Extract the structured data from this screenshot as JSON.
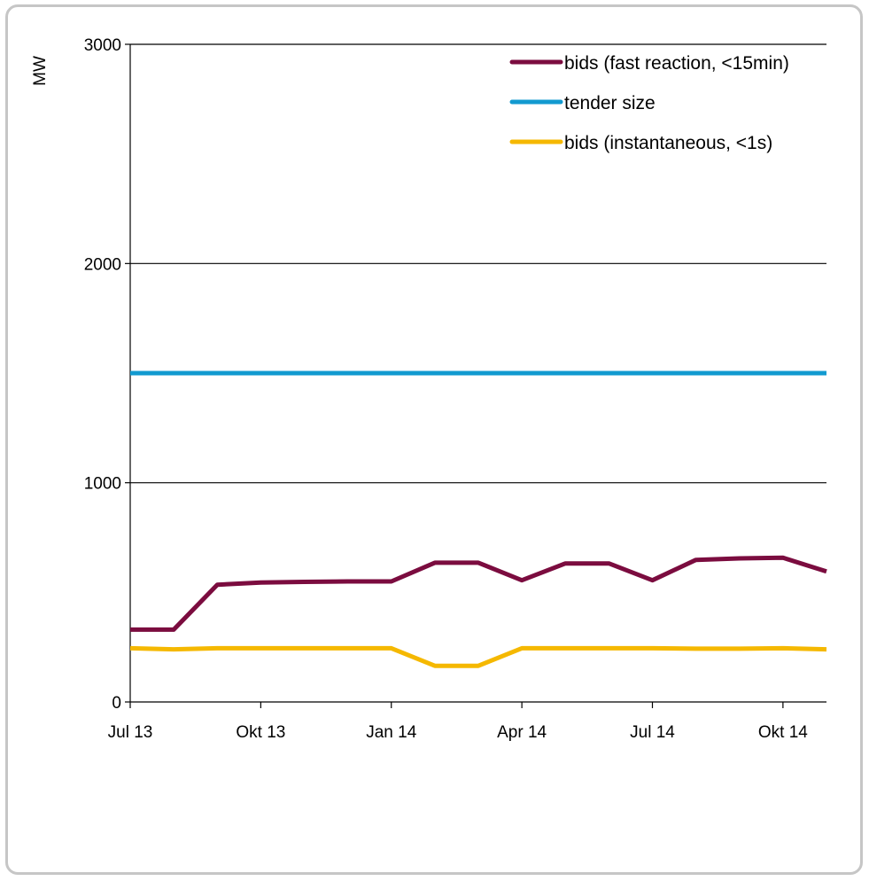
{
  "chart_data": {
    "type": "line",
    "ylabel": "MW",
    "xlabel": "",
    "title": "",
    "ylim": [
      0,
      3000
    ],
    "yticks": [
      0,
      1000,
      2000,
      3000
    ],
    "x_ticks": [
      "Jul 13",
      "Okt 13",
      "Jan 14",
      "Apr 14",
      "Jul 14",
      "Okt 14"
    ],
    "x": [
      "2013-07",
      "2013-08",
      "2013-09",
      "2013-10",
      "2013-11",
      "2013-12",
      "2014-01",
      "2014-02",
      "2014-03",
      "2014-04",
      "2014-05",
      "2014-06",
      "2014-07",
      "2014-08",
      "2014-09",
      "2014-10",
      "2014-11"
    ],
    "grid": "horizontal",
    "legend_position": "top-right",
    "series": [
      {
        "name": "bids (fast reaction, <15min)",
        "color": "#7b0c3f",
        "values": [
          330,
          330,
          535,
          545,
          548,
          550,
          550,
          635,
          635,
          555,
          632,
          632,
          555,
          648,
          655,
          658,
          595
        ]
      },
      {
        "name": "tender size",
        "color": "#129ad0",
        "values": [
          1500,
          1500,
          1500,
          1500,
          1500,
          1500,
          1500,
          1500,
          1500,
          1500,
          1500,
          1500,
          1500,
          1500,
          1500,
          1500,
          1500
        ]
      },
      {
        "name": "bids (instantaneous, <1s)",
        "color": "#f5b800",
        "values": [
          245,
          240,
          245,
          245,
          245,
          245,
          245,
          165,
          165,
          245,
          245,
          245,
          245,
          243,
          243,
          245,
          240
        ]
      }
    ]
  }
}
